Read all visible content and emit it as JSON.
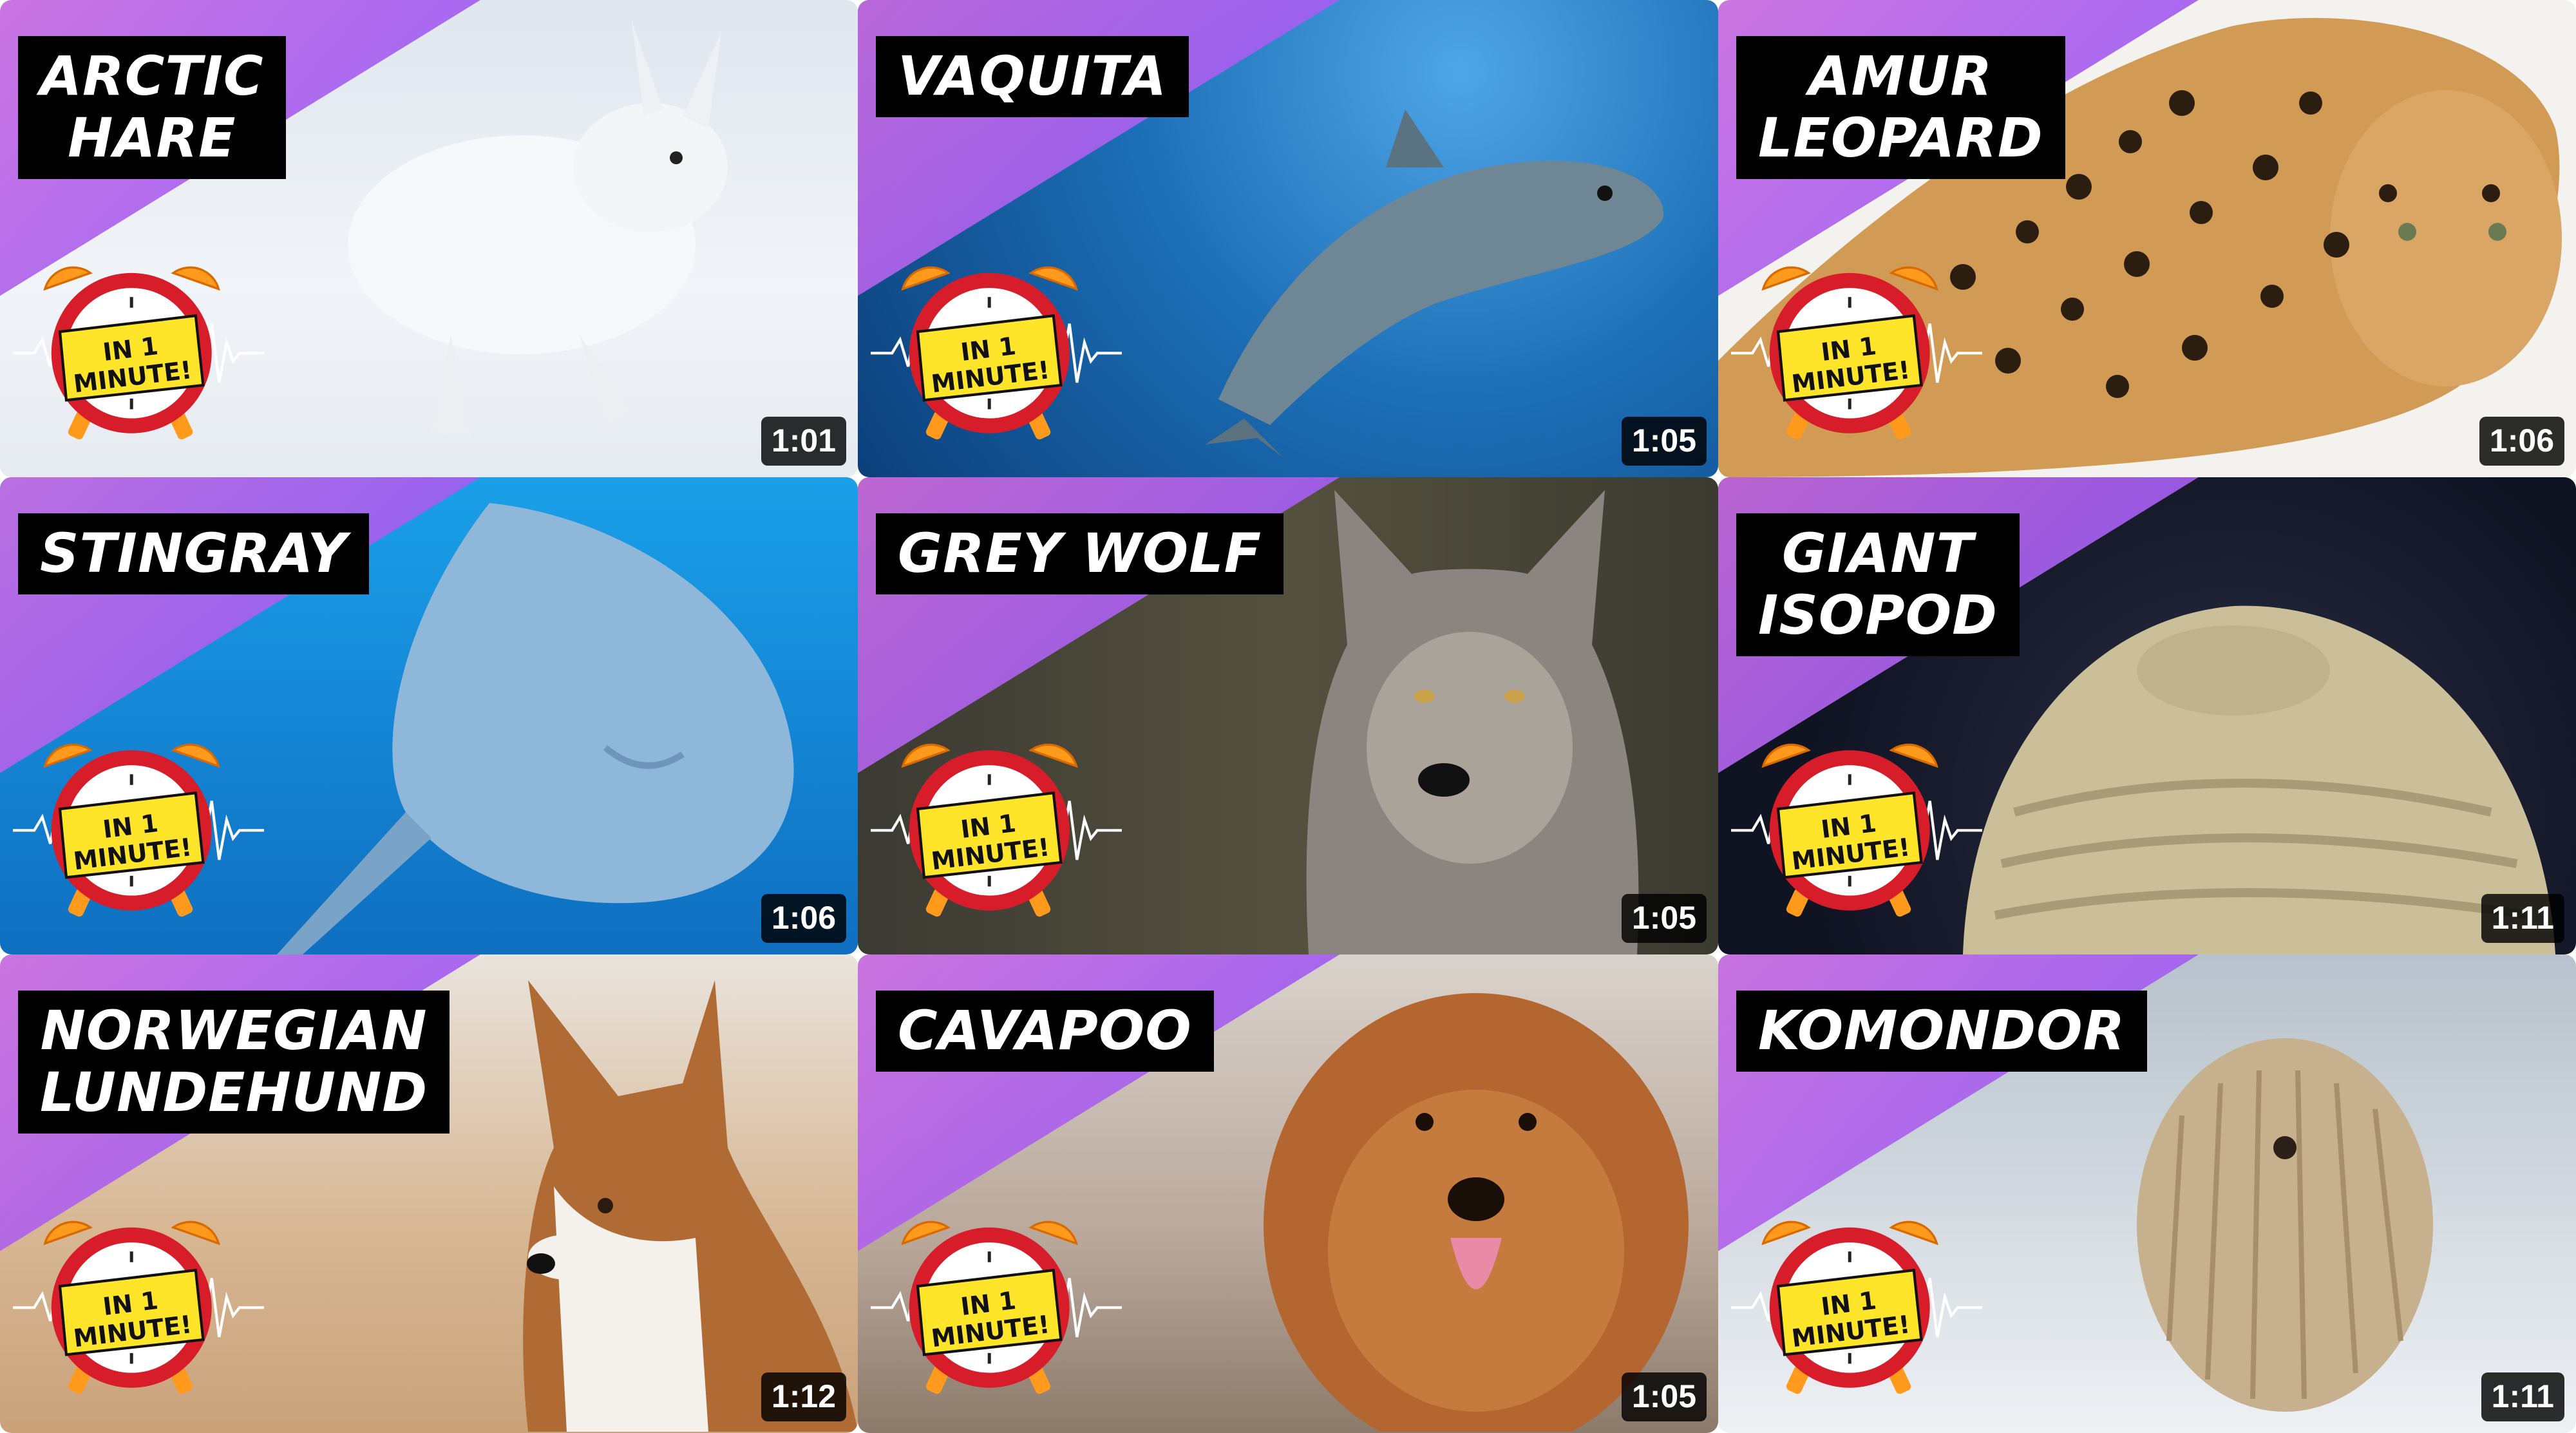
{
  "clock_badge": {
    "line1": "IN 1",
    "line2": "MINUTE!"
  },
  "videos": [
    {
      "title_lines": [
        "ARCTIC",
        "HARE"
      ],
      "duration": "1:01"
    },
    {
      "title_lines": [
        "VAQUITA"
      ],
      "duration": "1:05"
    },
    {
      "title_lines": [
        "AMUR",
        "LEOPARD"
      ],
      "duration": "1:06"
    },
    {
      "title_lines": [
        "STINGRAY"
      ],
      "duration": "1:06"
    },
    {
      "title_lines": [
        "GREY WOLF"
      ],
      "duration": "1:05"
    },
    {
      "title_lines": [
        "GIANT",
        "ISOPOD"
      ],
      "duration": "1:11"
    },
    {
      "title_lines": [
        "NORWEGIAN",
        "LUNDEHUND"
      ],
      "duration": "1:12"
    },
    {
      "title_lines": [
        "CAVAPOO"
      ],
      "duration": "1:05"
    },
    {
      "title_lines": [
        "KOMONDOR"
      ],
      "duration": "1:11"
    }
  ]
}
